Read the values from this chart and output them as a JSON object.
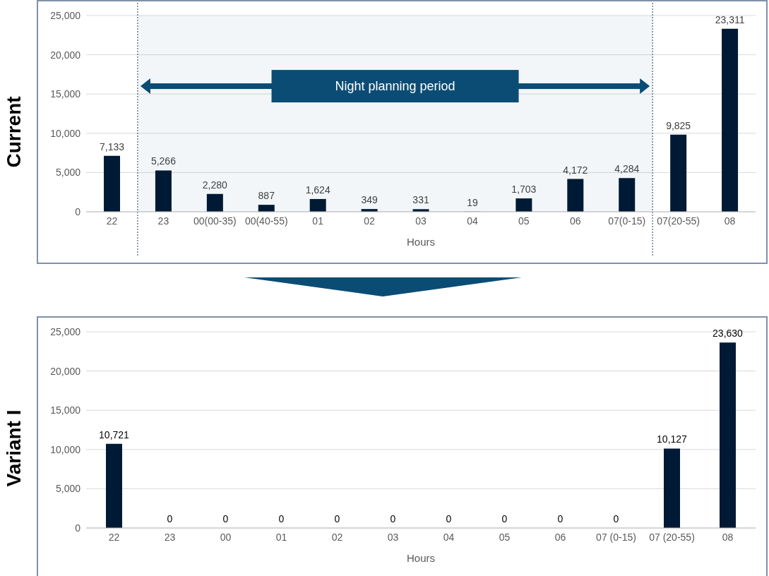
{
  "chart_data": [
    {
      "type": "bar",
      "ylabel": "Current",
      "xlabel": "Hours",
      "categories": [
        "22",
        "23",
        "00(00-35)",
        "00(40-55)",
        "01",
        "02",
        "03",
        "04",
        "05",
        "06",
        "07(0-15)",
        "07(20-55)",
        "08"
      ],
      "values": [
        7133,
        5266,
        2280,
        887,
        1624,
        349,
        331,
        19,
        1703,
        4172,
        4284,
        9825,
        23311
      ],
      "value_labels": [
        "7,133",
        "5,266",
        "2,280",
        "887",
        "1,624",
        "349",
        "331",
        "19",
        "1,703",
        "4,172",
        "4,284",
        "9,825",
        "23,311"
      ],
      "color": "#001a35",
      "ylim": [
        0,
        25000
      ],
      "yticks": [
        0,
        {
          "value": 5000,
          "label": "5,000"
        },
        {
          "value": 10000,
          "label": "10,000"
        },
        {
          "value": 15000,
          "label": "15,000"
        },
        {
          "value": 20000,
          "label": "20,000"
        },
        {
          "value": 25000,
          "label": "25,000"
        }
      ],
      "grid": "y",
      "bands": [
        {
          "axis": "x",
          "from": "23",
          "to": "07(0-15)",
          "label": "Night planning period",
          "color": "#0b4c74"
        }
      ]
    },
    {
      "type": "bar",
      "ylabel": "Variant I",
      "xlabel": "Hours",
      "categories": [
        "22",
        "23",
        "00",
        "01",
        "02",
        "03",
        "04",
        "05",
        "06",
        "07 (0-15)",
        "07 (20-55)",
        "08"
      ],
      "values": [
        10721,
        0,
        0,
        0,
        0,
        0,
        0,
        0,
        0,
        0,
        10127,
        23630
      ],
      "value_labels": [
        "10,721",
        "0",
        "0",
        "0",
        "0",
        "0",
        "0",
        "0",
        "0",
        "0",
        "10,127",
        "23,630"
      ],
      "color": "#001a35",
      "ylim": [
        0,
        25000
      ],
      "yticks": [
        0,
        {
          "value": 5000,
          "label": "5,000"
        },
        {
          "value": 10000,
          "label": "10,000"
        },
        {
          "value": 15000,
          "label": "15,000"
        },
        {
          "value": 20000,
          "label": "20,000"
        },
        {
          "value": 25000,
          "label": "25,000"
        }
      ],
      "grid": "y"
    }
  ]
}
